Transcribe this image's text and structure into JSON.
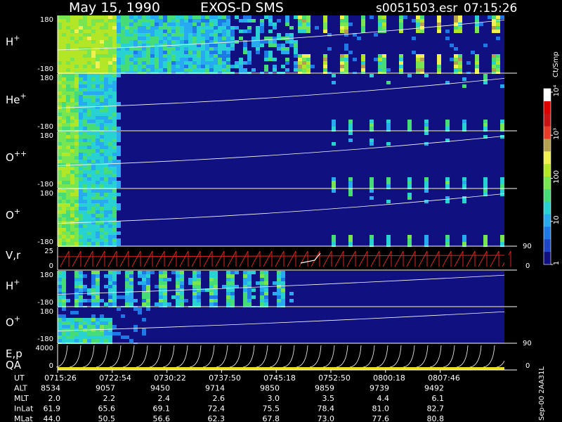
{
  "header": {
    "date": "May 15, 1990",
    "instrument": "EXOS-D SMS",
    "file": "s0051503.esr",
    "time": "07:15:26"
  },
  "footer_tag": "Sep-00 2AA31L",
  "colorbar": {
    "unit": "Ct/Smp",
    "tick_labels": [
      "1",
      "10",
      "100",
      "10³",
      "10⁴"
    ],
    "colors": [
      "#101080",
      "#1e46c8",
      "#1e78e6",
      "#28aaf0",
      "#28d2d2",
      "#46dc78",
      "#78e650",
      "#b4e628",
      "#f0f050",
      "#b4a050",
      "#e63c28",
      "#c81414",
      "#dc0000",
      "#ffffff"
    ]
  },
  "chart_data": {
    "type": "heatmap",
    "title": "May 15, 1990 EXOS-D SMS",
    "x_time_labels": [
      "0715:26",
      "0722:54",
      "0730:22",
      "0737:50",
      "0745:18",
      "0752:50",
      "0800:18",
      "0807:46"
    ],
    "panels": [
      {
        "label": "H",
        "sup": "+",
        "ymax": "180",
        "ymin": "-180",
        "series": "H+ pitch angle spectrogram"
      },
      {
        "label": "He",
        "sup": "+",
        "ymax": "180",
        "ymin": "-180",
        "series": "He+ pitch angle spectrogram"
      },
      {
        "label": "O",
        "sup": "++",
        "ymax": "180",
        "ymin": "-180",
        "series": "O++ pitch angle spectrogram"
      },
      {
        "label": "O",
        "sup": "+",
        "ymax": "180",
        "ymin": "-180",
        "series": "O+ pitch angle spectrogram"
      },
      {
        "label": "V,r",
        "sup": "",
        "ymax": "25",
        "ymin": "0",
        "right_max": "90",
        "right_min": "0",
        "series": "sweep trace"
      },
      {
        "label": "H",
        "sup": "+",
        "ymax": "180",
        "ymin": "-180",
        "series": "H+ spectrogram (sector 2)"
      },
      {
        "label": "O",
        "sup": "+",
        "ymax": "180",
        "ymin": "-180",
        "series": "O+ spectrogram (sector 2)"
      },
      {
        "label": "E,p",
        "sub": "QA",
        "ymax": "4000",
        "ymin": "0",
        "right_max": "90",
        "right_min": "0",
        "series": "energy / pitch sweep"
      }
    ],
    "orbit_rows": [
      {
        "name": "UT",
        "values": [
          "0715:26",
          "0722:54",
          "0730:22",
          "0737:50",
          "0745:18",
          "0752:50",
          "0800:18",
          "0807:46"
        ]
      },
      {
        "name": "ALT",
        "values": [
          "8534",
          "9057",
          "9450",
          "9714",
          "9850",
          "9859",
          "9739",
          "9492"
        ]
      },
      {
        "name": "MLT",
        "values": [
          "2.0",
          "2.2",
          "2.4",
          "2.6",
          "3.0",
          "3.5",
          "4.4",
          "6.1"
        ]
      },
      {
        "name": "InLat",
        "values": [
          "61.9",
          "65.6",
          "69.1",
          "72.4",
          "75.5",
          "78.4",
          "81.0",
          "82.7"
        ]
      },
      {
        "name": "MLat",
        "values": [
          "44.0",
          "50.5",
          "56.6",
          "62.3",
          "67.8",
          "73.0",
          "77.6",
          "80.8"
        ]
      }
    ]
  }
}
